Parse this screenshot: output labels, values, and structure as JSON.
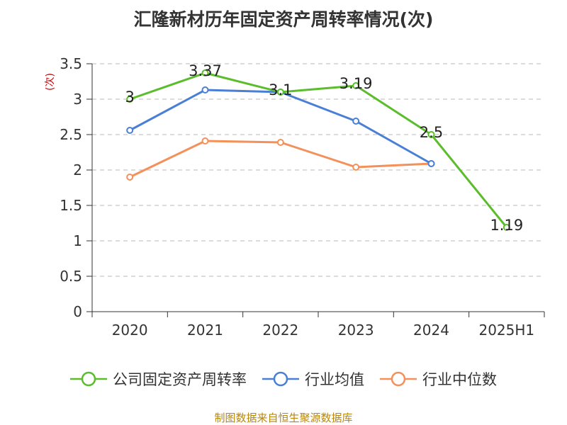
{
  "title": "汇隆新材历年固定资产周转率情况(次)",
  "y_unit": "(次)",
  "source": "制图数据来自恒生聚源数据库",
  "chart_data": {
    "type": "line",
    "title": "汇隆新材历年固定资产周转率情况(次)",
    "ylabel": "(次)",
    "xlabel": "",
    "categories": [
      "2020",
      "2021",
      "2022",
      "2023",
      "2024",
      "2025H1"
    ],
    "ylim": [
      0,
      3.5
    ],
    "yticks": [
      0,
      0.5,
      1,
      1.5,
      2,
      2.5,
      3,
      3.5
    ],
    "ytick_labels": [
      "0",
      "0.5",
      "1",
      "1.5",
      "2",
      "2.5",
      "3",
      "3.5"
    ],
    "grid": true,
    "legend_position": "bottom",
    "series": [
      {
        "name": "公司固定资产周转率",
        "color": "#5bbd2b",
        "values": [
          3,
          3.37,
          3.1,
          3.19,
          2.5,
          1.19
        ],
        "data_labels": [
          "3",
          "3.37",
          "3.1",
          "3.19",
          "2.5",
          "1.19"
        ]
      },
      {
        "name": "行业均值",
        "color": "#4a7fd6",
        "values": [
          2.56,
          3.13,
          3.1,
          2.69,
          2.09,
          null
        ],
        "data_labels": []
      },
      {
        "name": "行业中位数",
        "color": "#f4905a",
        "values": [
          1.9,
          2.41,
          2.39,
          2.04,
          2.09,
          null
        ],
        "data_labels": []
      }
    ]
  }
}
